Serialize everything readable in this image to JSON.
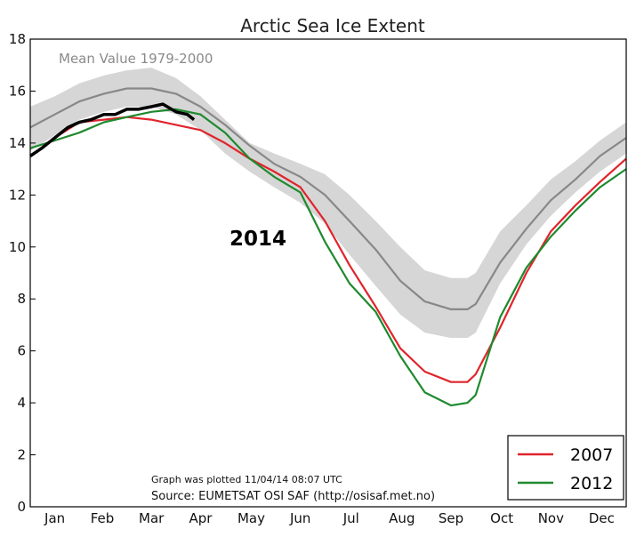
{
  "chart_data": {
    "type": "line",
    "title": "Arctic Sea Ice Extent",
    "ylim": [
      0,
      18
    ],
    "y_ticks": [
      0,
      2,
      4,
      6,
      8,
      10,
      12,
      14,
      16,
      18
    ],
    "xlim": [
      1,
      365
    ],
    "x_tick_labels": [
      {
        "label": "Jan",
        "day": 16
      },
      {
        "label": "Feb",
        "day": 45
      },
      {
        "label": "Mar",
        "day": 75
      },
      {
        "label": "Apr",
        "day": 105
      },
      {
        "label": "May",
        "day": 136
      },
      {
        "label": "Jun",
        "day": 166
      },
      {
        "label": "Jul",
        "day": 197
      },
      {
        "label": "Aug",
        "day": 228
      },
      {
        "label": "Sep",
        "day": 258
      },
      {
        "label": "Oct",
        "day": 289
      },
      {
        "label": "Nov",
        "day": 319
      },
      {
        "label": "Dec",
        "day": 350
      }
    ],
    "grid": false,
    "mean_label": "Mean Value 1979-2000",
    "highlight_label": "2014",
    "plot_note": "Graph was plotted 11/04/14 08:07 UTC",
    "source": "Source: EUMETSAT OSI SAF (http://osisaf.met.no)",
    "legend": {
      "position": "bottom-right",
      "entries": [
        "2007",
        "2012"
      ]
    },
    "band": {
      "x": [
        1,
        16,
        31,
        46,
        60,
        75,
        90,
        105,
        120,
        135,
        150,
        166,
        181,
        196,
        212,
        227,
        242,
        258,
        268,
        273,
        288,
        304,
        319,
        334,
        349,
        365
      ],
      "low": [
        13.7,
        14.3,
        14.9,
        15.2,
        15.4,
        15.4,
        15.1,
        14.5,
        13.6,
        12.9,
        12.3,
        11.7,
        10.9,
        9.7,
        8.5,
        7.4,
        6.7,
        6.5,
        6.5,
        6.7,
        8.6,
        10.1,
        11.2,
        12.1,
        12.9,
        13.6
      ],
      "high": [
        15.4,
        15.8,
        16.3,
        16.6,
        16.8,
        16.9,
        16.5,
        15.8,
        14.9,
        14.0,
        13.6,
        13.2,
        12.8,
        12.0,
        11.0,
        10.0,
        9.1,
        8.8,
        8.8,
        9.0,
        10.6,
        11.6,
        12.6,
        13.3,
        14.1,
        14.8
      ]
    },
    "series": [
      {
        "name": "Mean Value 1979-2000",
        "color": "#888888",
        "x": [
          1,
          16,
          31,
          46,
          60,
          75,
          90,
          105,
          120,
          135,
          150,
          166,
          181,
          196,
          212,
          227,
          242,
          258,
          268,
          273,
          288,
          304,
          319,
          334,
          349,
          365
        ],
        "values": [
          14.6,
          15.1,
          15.6,
          15.9,
          16.1,
          16.1,
          15.9,
          15.4,
          14.7,
          13.9,
          13.2,
          12.7,
          12.0,
          11.0,
          9.9,
          8.7,
          7.9,
          7.6,
          7.6,
          7.8,
          9.4,
          10.7,
          11.8,
          12.6,
          13.5,
          14.2
        ]
      },
      {
        "name": "2007",
        "color": "#e0242b",
        "x": [
          1,
          16,
          31,
          46,
          60,
          75,
          90,
          105,
          120,
          135,
          150,
          166,
          181,
          196,
          212,
          227,
          242,
          258,
          268,
          273,
          288,
          304,
          319,
          334,
          349,
          365
        ],
        "values": [
          13.5,
          14.2,
          14.8,
          14.9,
          15.0,
          14.9,
          14.7,
          14.5,
          14.0,
          13.4,
          12.9,
          12.3,
          11.0,
          9.3,
          7.7,
          6.1,
          5.2,
          4.8,
          4.8,
          5.1,
          6.9,
          9.0,
          10.6,
          11.6,
          12.5,
          13.4
        ]
      },
      {
        "name": "2012",
        "color": "#1e8a2e",
        "x": [
          1,
          16,
          31,
          46,
          60,
          75,
          90,
          105,
          120,
          135,
          150,
          166,
          181,
          196,
          212,
          227,
          242,
          258,
          268,
          273,
          288,
          304,
          319,
          334,
          349,
          365
        ],
        "values": [
          13.8,
          14.1,
          14.4,
          14.8,
          15.0,
          15.2,
          15.3,
          15.1,
          14.4,
          13.4,
          12.7,
          12.1,
          10.2,
          8.6,
          7.5,
          5.8,
          4.4,
          3.9,
          4.0,
          4.3,
          7.3,
          9.2,
          10.4,
          11.4,
          12.3,
          13.0
        ]
      },
      {
        "name": "2014",
        "color": "#000000",
        "x": [
          1,
          8,
          16,
          24,
          31,
          38,
          46,
          53,
          60,
          67,
          75,
          82,
          90,
          97,
          101
        ],
        "values": [
          13.5,
          13.8,
          14.2,
          14.6,
          14.8,
          14.9,
          15.1,
          15.1,
          15.3,
          15.3,
          15.4,
          15.5,
          15.2,
          15.1,
          14.9
        ]
      }
    ]
  }
}
